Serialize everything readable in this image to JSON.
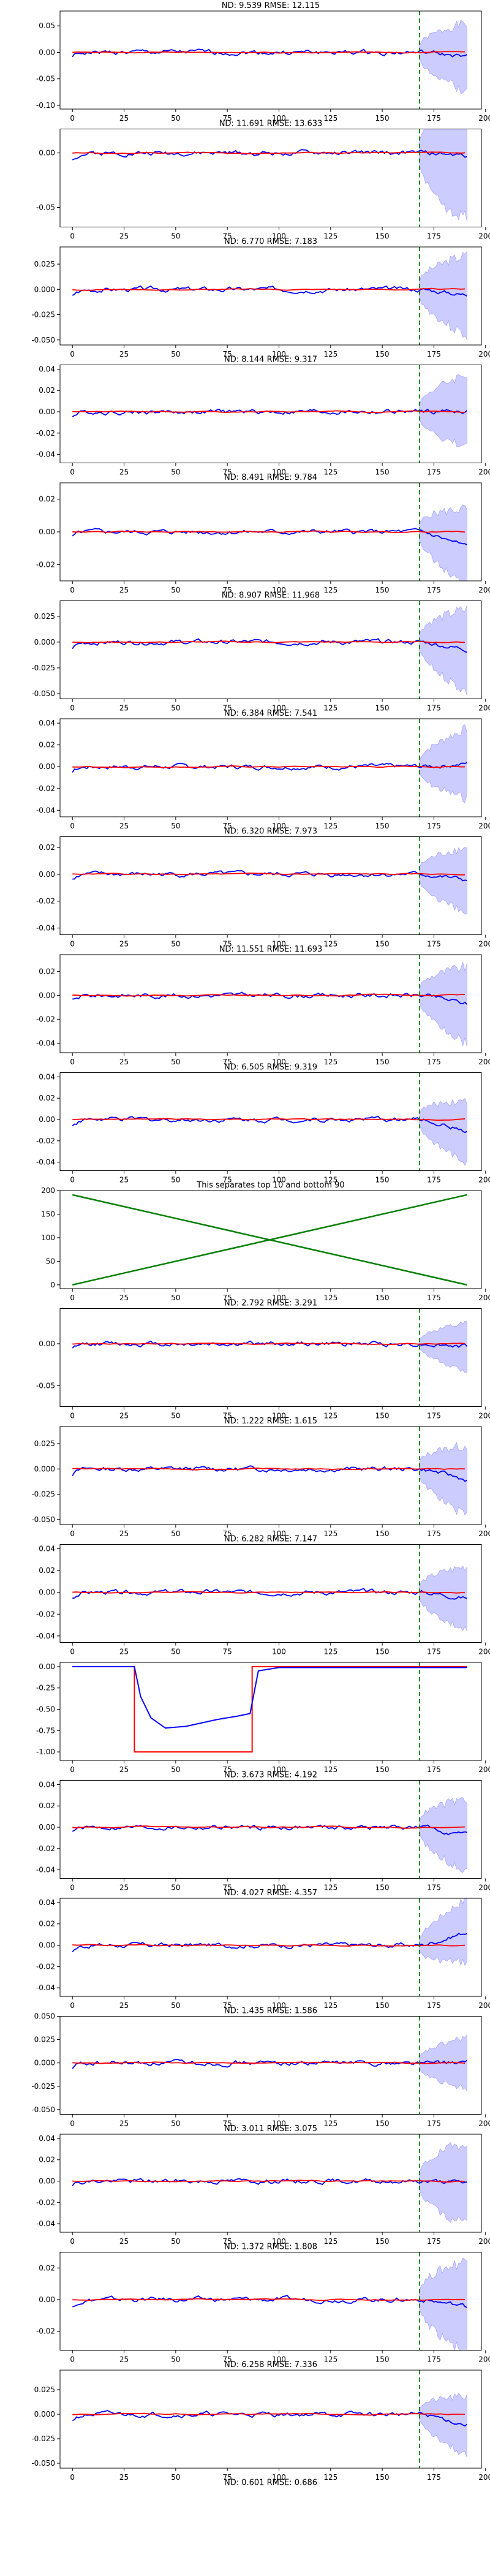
{
  "figure": {
    "colors": {
      "observed": "#0000ff",
      "model": "#ff0000",
      "band": "#7f7fff",
      "cutoff": "#008000",
      "separator": "#008000"
    }
  },
  "chart_data": [
    {
      "type": "line",
      "title": "ND:  9.539 RMSE:  12.115",
      "xlim": [
        -6,
        198
      ],
      "ylim": [
        -0.107,
        0.078
      ],
      "yticks": [
        "-0.10",
        "-0.05",
        "0.00",
        "0.05"
      ],
      "ytick_values": [
        -0.1,
        -0.05,
        0.0,
        0.05
      ],
      "xticks": [
        "0",
        "25",
        "50",
        "75",
        "100",
        "125",
        "150",
        "175",
        "200"
      ],
      "xtick_values": [
        0,
        25,
        50,
        75,
        100,
        125,
        150,
        175,
        200
      ],
      "cutoff_x": 168,
      "band_end_half": 0.065,
      "observed_end": -0.01,
      "series_seed": 1,
      "x_end": 191
    },
    {
      "type": "line",
      "title": "ND:  11.691 RMSE:  13.633",
      "xlim": [
        -6,
        198
      ],
      "ylim": [
        -0.068,
        0.022
      ],
      "yticks": [
        "-0.05",
        "0.00"
      ],
      "ytick_values": [
        -0.05,
        0.0
      ],
      "xticks": [
        "0",
        "25",
        "50",
        "75",
        "100",
        "125",
        "150",
        "175",
        "200"
      ],
      "xtick_values": [
        0,
        25,
        50,
        75,
        100,
        125,
        150,
        175,
        200
      ],
      "cutoff_x": 168,
      "band_end_half": 0.06,
      "observed_end": -0.003,
      "series_seed": 2,
      "x_end": 191
    },
    {
      "type": "line",
      "title": "ND:  6.770 RMSE:  7.183",
      "xlim": [
        -6,
        198
      ],
      "ylim": [
        -0.055,
        0.042
      ],
      "yticks": [
        "-0.050",
        "-0.025",
        "0.000",
        "0.025"
      ],
      "ytick_values": [
        -0.05,
        -0.025,
        0.0,
        0.025
      ],
      "xticks": [
        "0",
        "25",
        "50",
        "75",
        "100",
        "125",
        "150",
        "175",
        "200"
      ],
      "xtick_values": [
        0,
        25,
        50,
        75,
        100,
        125,
        150,
        175,
        200
      ],
      "cutoff_x": 168,
      "band_end_half": 0.04,
      "observed_end": -0.006,
      "series_seed": 3,
      "x_end": 191
    },
    {
      "type": "line",
      "title": "ND:  8.144 RMSE:  9.317",
      "xlim": [
        -6,
        198
      ],
      "ylim": [
        -0.048,
        0.044
      ],
      "yticks": [
        "-0.04",
        "-0.02",
        "0.00",
        "0.02",
        "0.04"
      ],
      "ytick_values": [
        -0.04,
        -0.02,
        0.0,
        0.02,
        0.04
      ],
      "xticks": [
        "0",
        "25",
        "50",
        "75",
        "100",
        "125",
        "150",
        "175",
        "200"
      ],
      "xtick_values": [
        0,
        25,
        50,
        75,
        100,
        125,
        150,
        175,
        200
      ],
      "cutoff_x": 168,
      "band_end_half": 0.035,
      "observed_end": 0.001,
      "series_seed": 4,
      "x_end": 191
    },
    {
      "type": "line",
      "title": "ND:  8.491 RMSE:  9.784",
      "xlim": [
        -6,
        198
      ],
      "ylim": [
        -0.03,
        0.03
      ],
      "yticks": [
        "-0.02",
        "0.00",
        "0.02"
      ],
      "ytick_values": [
        -0.02,
        0.0,
        0.02
      ],
      "xticks": [
        "0",
        "25",
        "50",
        "75",
        "100",
        "125",
        "150",
        "175",
        "200"
      ],
      "xtick_values": [
        0,
        25,
        50,
        75,
        100,
        125,
        150,
        175,
        200
      ],
      "cutoff_x": 168,
      "band_end_half": 0.024,
      "observed_end": -0.01,
      "series_seed": 5,
      "x_end": 191
    },
    {
      "type": "line",
      "title": "ND:  8.907 RMSE:  11.968",
      "xlim": [
        -6,
        198
      ],
      "ylim": [
        -0.055,
        0.04
      ],
      "yticks": [
        "-0.050",
        "-0.025",
        "0.000",
        "0.025"
      ],
      "ytick_values": [
        -0.05,
        -0.025,
        0.0,
        0.025
      ],
      "xticks": [
        "0",
        "25",
        "50",
        "75",
        "100",
        "125",
        "150",
        "175",
        "200"
      ],
      "xtick_values": [
        0,
        25,
        50,
        75,
        100,
        125,
        150,
        175,
        200
      ],
      "cutoff_x": 168,
      "band_end_half": 0.04,
      "observed_end": -0.008,
      "series_seed": 6,
      "x_end": 191
    },
    {
      "type": "line",
      "title": "ND:  6.384 RMSE:  7.541",
      "xlim": [
        -6,
        198
      ],
      "ylim": [
        -0.046,
        0.044
      ],
      "yticks": [
        "-0.04",
        "-0.02",
        "0.00",
        "0.02",
        "0.04"
      ],
      "ytick_values": [
        -0.04,
        -0.02,
        0.0,
        0.02,
        0.04
      ],
      "xticks": [
        "0",
        "25",
        "50",
        "75",
        "100",
        "125",
        "150",
        "175",
        "200"
      ],
      "xtick_values": [
        0,
        25,
        50,
        75,
        100,
        125,
        150,
        175,
        200
      ],
      "cutoff_x": 168,
      "band_end_half": 0.032,
      "observed_end": 0.003,
      "series_seed": 7,
      "x_end": 191
    },
    {
      "type": "line",
      "title": "ND:  6.320 RMSE:  7.973",
      "xlim": [
        -6,
        198
      ],
      "ylim": [
        -0.045,
        0.028
      ],
      "yticks": [
        "-0.04",
        "-0.02",
        "0.00",
        "0.02"
      ],
      "ytick_values": [
        -0.04,
        -0.02,
        0.0,
        0.02
      ],
      "xticks": [
        "0",
        "25",
        "50",
        "75",
        "100",
        "125",
        "150",
        "175",
        "200"
      ],
      "xtick_values": [
        0,
        25,
        50,
        75,
        100,
        125,
        150,
        175,
        200
      ],
      "cutoff_x": 168,
      "band_end_half": 0.025,
      "observed_end": -0.005,
      "series_seed": 8,
      "x_end": 191
    },
    {
      "type": "line",
      "title": "ND:  11.551 RMSE:  11.693",
      "xlim": [
        -6,
        198
      ],
      "ylim": [
        -0.048,
        0.034
      ],
      "yticks": [
        "-0.04",
        "-0.02",
        "0.00",
        "0.02"
      ],
      "ytick_values": [
        -0.04,
        -0.02,
        0.0,
        0.02
      ],
      "xticks": [
        "0",
        "25",
        "50",
        "75",
        "100",
        "125",
        "150",
        "175",
        "200"
      ],
      "xtick_values": [
        0,
        25,
        50,
        75,
        100,
        125,
        150,
        175,
        200
      ],
      "cutoff_x": 168,
      "band_end_half": 0.032,
      "observed_end": -0.008,
      "series_seed": 9,
      "x_end": 191
    },
    {
      "type": "line",
      "title": "ND:  6.505 RMSE:  9.319",
      "xlim": [
        -6,
        198
      ],
      "ylim": [
        -0.048,
        0.044
      ],
      "yticks": [
        "-0.04",
        "-0.02",
        "0.00",
        "0.02",
        "0.04"
      ],
      "ytick_values": [
        -0.04,
        -0.02,
        0.0,
        0.02,
        0.04
      ],
      "xticks": [
        "0",
        "25",
        "50",
        "75",
        "100",
        "125",
        "150",
        "175",
        "200"
      ],
      "xtick_values": [
        0,
        25,
        50,
        75,
        100,
        125,
        150,
        175,
        200
      ],
      "cutoff_x": 168,
      "band_end_half": 0.03,
      "observed_end": -0.012,
      "series_seed": 10,
      "x_end": 191
    },
    {
      "type": "line",
      "title": "This separates top 10 and bottom 90",
      "xlim": [
        -6,
        198
      ],
      "ylim": [
        -8,
        200
      ],
      "yticks": [
        "0",
        "50",
        "100",
        "150",
        "200"
      ],
      "ytick_values": [
        0,
        50,
        100,
        150,
        200
      ],
      "xticks": [
        "0",
        "25",
        "50",
        "75",
        "100",
        "125",
        "150",
        "175",
        "200"
      ],
      "xtick_values": [
        0,
        25,
        50,
        75,
        100,
        125,
        150,
        175,
        200
      ],
      "separator": true,
      "lines": [
        {
          "x": [
            0,
            191
          ],
          "y": [
            0,
            191
          ]
        },
        {
          "x": [
            0,
            191
          ],
          "y": [
            191,
            0
          ]
        }
      ]
    },
    {
      "type": "line",
      "title": "ND:  2.792 RMSE:  3.291",
      "xlim": [
        -6,
        198
      ],
      "ylim": [
        -0.075,
        0.042
      ],
      "yticks": [
        "-0.05",
        "0.00"
      ],
      "ytick_values": [
        -0.05,
        0.0
      ],
      "xticks": [
        "0",
        "25",
        "50",
        "75",
        "100",
        "125",
        "150",
        "175",
        "200"
      ],
      "xtick_values": [
        0,
        25,
        50,
        75,
        100,
        125,
        150,
        175,
        200
      ],
      "cutoff_x": 168,
      "band_end_half": 0.028,
      "observed_end": -0.004,
      "series_seed": 12,
      "x_end": 191
    },
    {
      "type": "line",
      "title": "ND:  1.222 RMSE:  1.615",
      "xlim": [
        -6,
        198
      ],
      "ylim": [
        -0.055,
        0.042
      ],
      "yticks": [
        "-0.050",
        "-0.025",
        "0.000",
        "0.025"
      ],
      "ytick_values": [
        -0.05,
        -0.025,
        0.0,
        0.025
      ],
      "xticks": [
        "0",
        "25",
        "50",
        "75",
        "100",
        "125",
        "150",
        "175",
        "200"
      ],
      "xtick_values": [
        0,
        25,
        50,
        75,
        100,
        125,
        150,
        175,
        200
      ],
      "cutoff_x": 168,
      "band_end_half": 0.035,
      "observed_end": -0.012,
      "series_seed": 13,
      "x_end": 191
    },
    {
      "type": "line",
      "title": "ND:  6.282 RMSE:  7.147",
      "xlim": [
        -6,
        198
      ],
      "ylim": [
        -0.046,
        0.044
      ],
      "yticks": [
        "-0.04",
        "-0.02",
        "0.00",
        "0.02",
        "0.04"
      ],
      "ytick_values": [
        -0.04,
        -0.02,
        0.0,
        0.02,
        0.04
      ],
      "xticks": [
        "0",
        "25",
        "50",
        "75",
        "100",
        "125",
        "150",
        "175",
        "200"
      ],
      "xtick_values": [
        0,
        25,
        50,
        75,
        100,
        125,
        150,
        175,
        200
      ],
      "cutoff_x": 168,
      "band_end_half": 0.03,
      "observed_end": -0.006,
      "series_seed": 14,
      "x_end": 191
    },
    {
      "type": "line",
      "title": "",
      "xlim": [
        -6,
        198
      ],
      "ylim": [
        -1.1,
        0.05
      ],
      "yticks": [
        "-1.00",
        "-0.75",
        "-0.50",
        "-0.25",
        "0.00"
      ],
      "ytick_values": [
        -1.0,
        -0.75,
        -0.5,
        -0.25,
        0.0
      ],
      "xticks": [
        "0",
        "25",
        "50",
        "75",
        "100",
        "125",
        "150",
        "175",
        "200"
      ],
      "xtick_values": [
        0,
        25,
        50,
        75,
        100,
        125,
        150,
        175,
        200
      ],
      "cutoff_x": 168,
      "special": "step",
      "model_line": {
        "x": [
          0,
          30,
          30,
          87,
          87,
          191
        ],
        "y": [
          0,
          0,
          -1.0,
          -1.0,
          0,
          0
        ]
      },
      "observed_line": {
        "x": [
          0,
          30,
          33,
          38,
          45,
          55,
          70,
          80,
          86,
          90,
          100,
          191
        ],
        "y": [
          0,
          0,
          -0.35,
          -0.6,
          -0.72,
          -0.7,
          -0.62,
          -0.58,
          -0.55,
          -0.05,
          -0.01,
          -0.01
        ]
      }
    },
    {
      "type": "line",
      "title": "ND:  3.673 RMSE:  4.192",
      "xlim": [
        -6,
        198
      ],
      "ylim": [
        -0.048,
        0.044
      ],
      "yticks": [
        "-0.04",
        "-0.02",
        "0.00",
        "0.02",
        "0.04"
      ],
      "ytick_values": [
        -0.04,
        -0.02,
        0.0,
        0.02,
        0.04
      ],
      "xticks": [
        "0",
        "25",
        "50",
        "75",
        "100",
        "125",
        "150",
        "175",
        "200"
      ],
      "xtick_values": [
        0,
        25,
        50,
        75,
        100,
        125,
        150,
        175,
        200
      ],
      "cutoff_x": 168,
      "band_end_half": 0.035,
      "observed_end": -0.008,
      "series_seed": 16,
      "x_end": 191
    },
    {
      "type": "line",
      "title": "ND:  4.027 RMSE:  4.357",
      "xlim": [
        -6,
        198
      ],
      "ylim": [
        -0.048,
        0.044
      ],
      "yticks": [
        "-0.04",
        "-0.02",
        "0.00",
        "0.02",
        "0.04"
      ],
      "ytick_values": [
        -0.04,
        -0.02,
        0.0,
        0.02,
        0.04
      ],
      "xticks": [
        "0",
        "25",
        "50",
        "75",
        "100",
        "125",
        "150",
        "175",
        "200"
      ],
      "xtick_values": [
        0,
        25,
        50,
        75,
        100,
        125,
        150,
        175,
        200
      ],
      "cutoff_x": 168,
      "band_end_half": 0.03,
      "observed_end": 0.014,
      "series_seed": 17,
      "x_end": 191
    },
    {
      "type": "line",
      "title": "ND:  1.435 RMSE:  1.586",
      "xlim": [
        -6,
        198
      ],
      "ylim": [
        -0.055,
        0.05
      ],
      "yticks": [
        "-0.050",
        "-0.025",
        "0.000",
        "0.025",
        "0.050"
      ],
      "ytick_values": [
        -0.05,
        -0.025,
        0.0,
        0.025,
        0.05
      ],
      "xticks": [
        "0",
        "25",
        "50",
        "75",
        "100",
        "125",
        "150",
        "175",
        "200"
      ],
      "xtick_values": [
        0,
        25,
        50,
        75,
        100,
        125,
        150,
        175,
        200
      ],
      "cutoff_x": 168,
      "band_end_half": 0.028,
      "observed_end": 0.0,
      "series_seed": 18,
      "x_end": 191
    },
    {
      "type": "line",
      "title": "ND:  3.011 RMSE:  3.075",
      "xlim": [
        -6,
        198
      ],
      "ylim": [
        -0.048,
        0.044
      ],
      "yticks": [
        "-0.04",
        "-0.02",
        "0.00",
        "0.02",
        "0.04"
      ],
      "ytick_values": [
        -0.04,
        -0.02,
        0.0,
        0.02,
        0.04
      ],
      "xticks": [
        "0",
        "25",
        "50",
        "75",
        "100",
        "125",
        "150",
        "175",
        "200"
      ],
      "xtick_values": [
        0,
        25,
        50,
        75,
        100,
        125,
        150,
        175,
        200
      ],
      "cutoff_x": 168,
      "band_end_half": 0.04,
      "observed_end": -0.002,
      "series_seed": 19,
      "x_end": 191
    },
    {
      "type": "line",
      "title": "ND:  1.372 RMSE:  1.808",
      "xlim": [
        -6,
        198
      ],
      "ylim": [
        -0.032,
        0.03
      ],
      "yticks": [
        "-0.02",
        "0.00",
        "0.02"
      ],
      "ytick_values": [
        -0.02,
        0.0,
        0.02
      ],
      "xticks": [
        "0",
        "25",
        "50",
        "75",
        "100",
        "125",
        "150",
        "175",
        "200"
      ],
      "xtick_values": [
        0,
        25,
        50,
        75,
        100,
        125,
        150,
        175,
        200
      ],
      "cutoff_x": 168,
      "band_end_half": 0.03,
      "observed_end": -0.005,
      "series_seed": 20,
      "x_end": 191
    },
    {
      "type": "line",
      "title": "ND:  6.258 RMSE:  7.336",
      "xlim": [
        -6,
        198
      ],
      "ylim": [
        -0.055,
        0.045
      ],
      "yticks": [
        "-0.050",
        "-0.025",
        "0.000",
        "0.025"
      ],
      "ytick_values": [
        -0.05,
        -0.025,
        0.0,
        0.025
      ],
      "xticks": [
        "0",
        "25",
        "50",
        "75",
        "100",
        "125",
        "150",
        "175",
        "200"
      ],
      "xtick_values": [
        0,
        25,
        50,
        75,
        100,
        125,
        150,
        175,
        200
      ],
      "cutoff_x": 168,
      "band_end_half": 0.03,
      "observed_end": -0.012,
      "series_seed": 21,
      "x_end": 191
    },
    {
      "type": "line",
      "title": "ND:  0.601 RMSE:  0.686",
      "xlim": [],
      "ylim": [],
      "yticks": [],
      "ytick_values": [],
      "xticks": [],
      "xtick_values": [],
      "hidden_axes": true
    }
  ]
}
